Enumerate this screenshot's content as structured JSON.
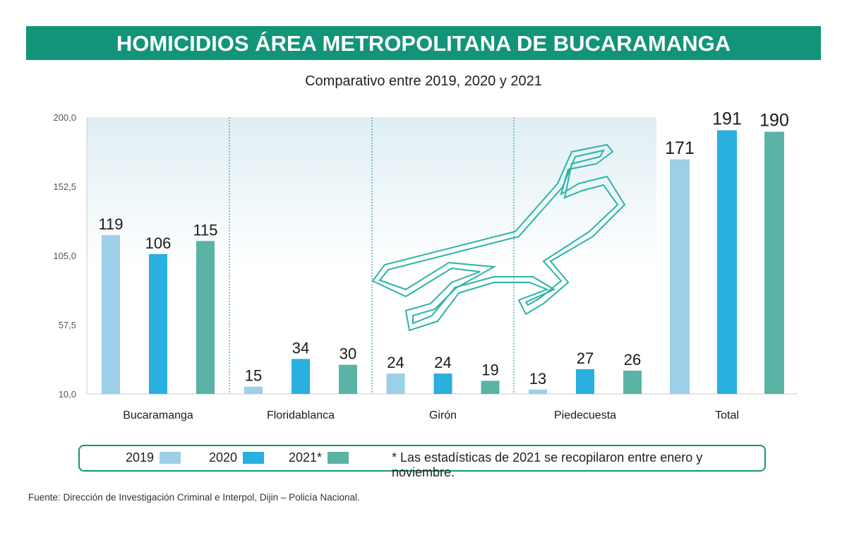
{
  "title": "HOMICIDIOS ÁREA METROPOLITANA DE BUCARAMANGA",
  "subtitle": "Comparativo entre 2019, 2020 y 2021",
  "legend": {
    "items": [
      {
        "label": "2019",
        "color": "#9dcfe6"
      },
      {
        "label": "2020",
        "color": "#29afe0"
      },
      {
        "label": "2021*",
        "color": "#5ab3a5"
      }
    ],
    "note": "* Las estadísticas de 2021 se recopilaron entre enero y noviembre."
  },
  "source": "Fuente: Dirección de Investigación Criminal e Interpol, Dijin – Policía Nacional.",
  "chart_data": {
    "type": "bar",
    "title": "HOMICIDIOS ÁREA METROPOLITANA DE BUCARAMANGA",
    "subtitle": "Comparativo entre 2019, 2020 y 2021",
    "categories": [
      "Bucaramanga",
      "Floridablanca",
      "Girón",
      "Piedecuesta",
      "Total"
    ],
    "series": [
      {
        "name": "2019",
        "values": [
          119,
          15,
          24,
          13,
          171
        ]
      },
      {
        "name": "2020",
        "values": [
          106,
          34,
          24,
          27,
          191
        ]
      },
      {
        "name": "2021*",
        "values": [
          115,
          30,
          19,
          26,
          190
        ]
      }
    ],
    "yticks": [
      "200,0",
      "152,5",
      "105,0",
      "57,5",
      "10,0"
    ],
    "ytick_values": [
      200,
      152.5,
      105,
      57.5,
      10
    ],
    "ylim": [
      10,
      200
    ],
    "xlabel": "",
    "ylabel": "",
    "legend_position": "bottom"
  }
}
